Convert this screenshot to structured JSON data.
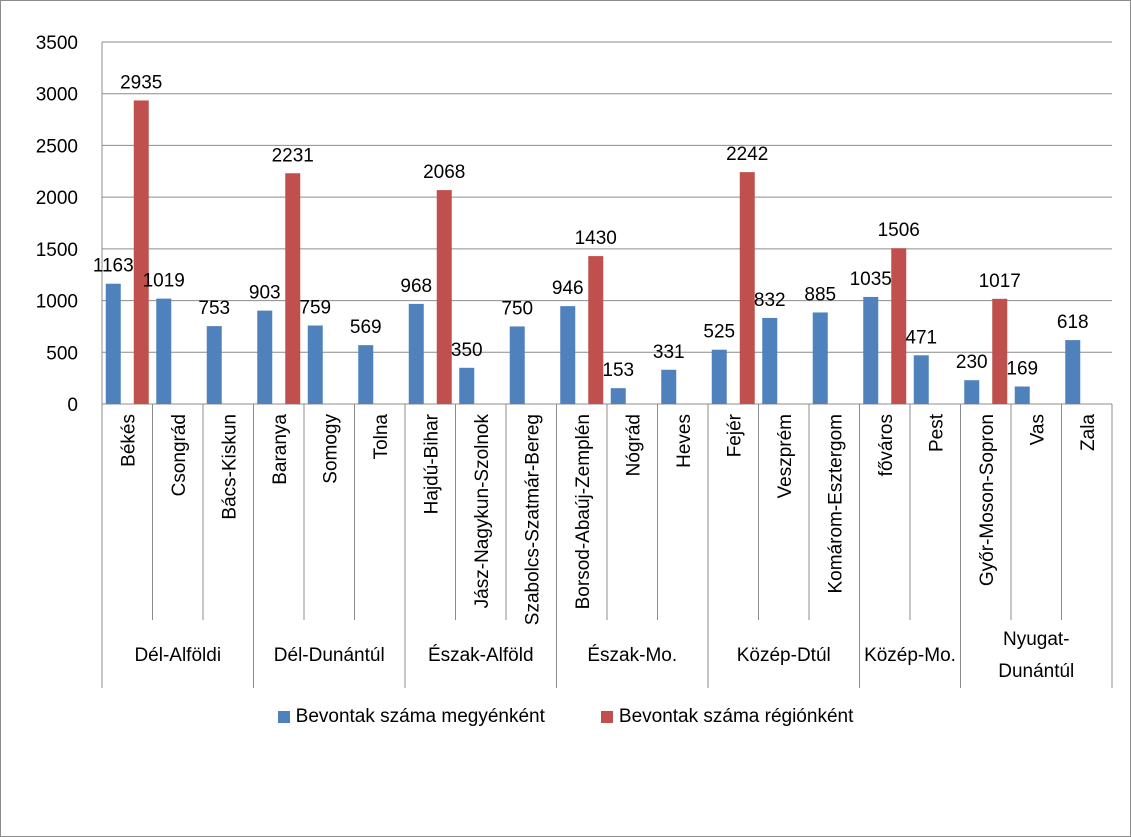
{
  "chart_data": {
    "type": "bar",
    "title": "",
    "xlabel": "",
    "ylabel": "",
    "ylim": [
      0,
      3500
    ],
    "yticks": [
      0,
      500,
      1000,
      1500,
      2000,
      2500,
      3000,
      3500
    ],
    "grid": true,
    "legend_position": "bottom",
    "categories": [
      "Békés",
      "Csongrád",
      "Bács-Kiskun",
      "Baranya",
      "Somogy",
      "Tolna",
      "Hajdú-Bihar",
      "Jász-Nagykun-Szolnok",
      "Szabolcs-Szatmár-Bereg",
      "Borsod-Abaúj-Zemplén",
      "Nógrád",
      "Heves",
      "Fejér",
      "Veszprém",
      "Komárom-Esztergom",
      "főváros",
      "Pest",
      "Győr-Moson-Sopron",
      "Vas",
      "Zala"
    ],
    "groups": [
      {
        "label": "Dél-Alföldi",
        "count": 3
      },
      {
        "label": "Dél-Dunántúl",
        "count": 3
      },
      {
        "label": "Észak-Alföld",
        "count": 3
      },
      {
        "label": "Észak-Mo.",
        "count": 3
      },
      {
        "label": "Közép-Dtúl",
        "count": 3
      },
      {
        "label": "Közép-Mo.",
        "count": 2
      },
      {
        "label": "Nyugat-Dunántúl",
        "count": 3
      }
    ],
    "series": [
      {
        "name": "Bevontak száma megyénként",
        "color": "#4f81bd",
        "values": [
          1163,
          1019,
          753,
          903,
          759,
          569,
          968,
          350,
          750,
          946,
          153,
          331,
          525,
          832,
          885,
          1035,
          471,
          230,
          169,
          618
        ]
      },
      {
        "name": "Bevontak száma régiónként",
        "color": "#c0504d",
        "values": [
          2935,
          null,
          null,
          2231,
          null,
          null,
          2068,
          null,
          null,
          1430,
          null,
          null,
          2242,
          null,
          null,
          1506,
          null,
          1017,
          null,
          null
        ]
      }
    ]
  }
}
